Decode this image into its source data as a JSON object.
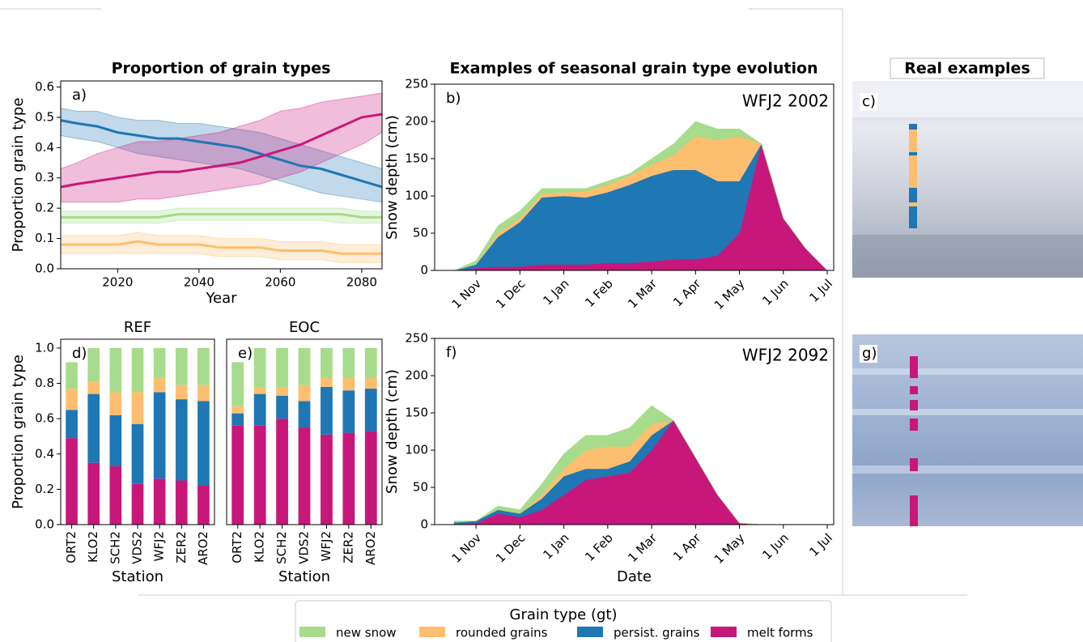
{
  "chart_data": [
    {
      "type": "line",
      "title": "Proportion of grain types",
      "annotation": "a)",
      "xlabel": "Year",
      "ylabel": "Proportion grain type",
      "x": [
        2006,
        2010,
        2015,
        2020,
        2025,
        2030,
        2035,
        2040,
        2045,
        2050,
        2055,
        2060,
        2065,
        2070,
        2075,
        2080,
        2085
      ],
      "xlim": [
        2006,
        2085
      ],
      "xticks": [
        2020,
        2040,
        2060,
        2080
      ],
      "ylim": [
        0,
        0.62
      ],
      "yticks": [
        {
          "value": 0,
          "label": "0.0"
        },
        0.1,
        0.2,
        0.3,
        0.4,
        0.5,
        0.6
      ],
      "series": [
        {
          "name": "persist. grains",
          "color": "#1f77b4",
          "values": [
            0.49,
            0.48,
            0.47,
            0.45,
            0.44,
            0.43,
            0.43,
            0.42,
            0.41,
            0.4,
            0.38,
            0.36,
            0.34,
            0.33,
            0.31,
            0.29,
            0.27
          ],
          "lower": [
            0.44,
            0.43,
            0.42,
            0.4,
            0.38,
            0.37,
            0.36,
            0.35,
            0.34,
            0.33,
            0.31,
            0.29,
            0.27,
            0.25,
            0.24,
            0.23,
            0.22
          ],
          "upper": [
            0.53,
            0.52,
            0.52,
            0.5,
            0.49,
            0.49,
            0.48,
            0.48,
            0.47,
            0.46,
            0.45,
            0.43,
            0.41,
            0.39,
            0.37,
            0.35,
            0.33
          ]
        },
        {
          "name": "melt forms",
          "color": "#c8177b",
          "values": [
            0.27,
            0.28,
            0.29,
            0.3,
            0.31,
            0.32,
            0.32,
            0.33,
            0.34,
            0.35,
            0.37,
            0.39,
            0.41,
            0.44,
            0.47,
            0.5,
            0.51
          ],
          "lower": [
            0.22,
            0.22,
            0.22,
            0.22,
            0.23,
            0.23,
            0.24,
            0.25,
            0.26,
            0.27,
            0.28,
            0.3,
            0.32,
            0.35,
            0.38,
            0.41,
            0.45
          ],
          "upper": [
            0.33,
            0.35,
            0.38,
            0.4,
            0.42,
            0.42,
            0.43,
            0.44,
            0.45,
            0.47,
            0.49,
            0.52,
            0.53,
            0.55,
            0.56,
            0.57,
            0.58
          ]
        },
        {
          "name": "new snow",
          "color": "#a6dc8b",
          "values": [
            0.17,
            0.17,
            0.17,
            0.17,
            0.17,
            0.17,
            0.18,
            0.18,
            0.18,
            0.18,
            0.18,
            0.18,
            0.18,
            0.18,
            0.18,
            0.17,
            0.17
          ],
          "lower": [
            0.15,
            0.15,
            0.15,
            0.15,
            0.15,
            0.15,
            0.16,
            0.16,
            0.16,
            0.16,
            0.16,
            0.16,
            0.16,
            0.16,
            0.15,
            0.15,
            0.15
          ],
          "upper": [
            0.19,
            0.19,
            0.19,
            0.19,
            0.19,
            0.19,
            0.2,
            0.2,
            0.2,
            0.2,
            0.2,
            0.2,
            0.2,
            0.2,
            0.2,
            0.19,
            0.19
          ]
        },
        {
          "name": "rounded grains",
          "color": "#fdbf6f",
          "values": [
            0.08,
            0.08,
            0.08,
            0.08,
            0.09,
            0.08,
            0.08,
            0.08,
            0.07,
            0.07,
            0.07,
            0.06,
            0.06,
            0.06,
            0.05,
            0.05,
            0.05
          ],
          "lower": [
            0.05,
            0.05,
            0.05,
            0.05,
            0.05,
            0.05,
            0.05,
            0.05,
            0.04,
            0.04,
            0.04,
            0.03,
            0.03,
            0.03,
            0.02,
            0.02,
            0.02
          ],
          "upper": [
            0.11,
            0.11,
            0.11,
            0.11,
            0.12,
            0.11,
            0.11,
            0.11,
            0.1,
            0.1,
            0.1,
            0.09,
            0.09,
            0.09,
            0.08,
            0.08,
            0.08
          ]
        }
      ]
    },
    {
      "type": "bar",
      "title": "REF",
      "annotation": "d)",
      "xlabel": "Station",
      "ylabel": "Proportion grain type",
      "categories": [
        "ORT2",
        "KLO2",
        "SCH2",
        "VDS2",
        "WFJ2",
        "ZER2",
        "ARO2"
      ],
      "ylim": [
        0,
        1.05
      ],
      "yticks": [
        {
          "value": 0,
          "label": "0.0"
        },
        0.2,
        0.4,
        0.6,
        0.8,
        {
          "value": 1,
          "label": "1.0"
        }
      ],
      "series": [
        {
          "name": "melt forms",
          "color": "#c8177b",
          "values": [
            0.49,
            0.35,
            0.33,
            0.23,
            0.26,
            0.25,
            0.22
          ]
        },
        {
          "name": "persist. grains",
          "color": "#1f77b4",
          "values": [
            0.16,
            0.39,
            0.29,
            0.34,
            0.49,
            0.46,
            0.48
          ]
        },
        {
          "name": "rounded grains",
          "color": "#fdbf6f",
          "values": [
            0.12,
            0.07,
            0.13,
            0.18,
            0.08,
            0.08,
            0.09
          ]
        },
        {
          "name": "new snow",
          "color": "#a6dc8b",
          "values": [
            0.15,
            0.19,
            0.25,
            0.25,
            0.17,
            0.21,
            0.21
          ]
        }
      ]
    },
    {
      "type": "bar",
      "title": "EOC",
      "annotation": "e)",
      "xlabel": "Station",
      "categories": [
        "ORT2",
        "KLO2",
        "SCH2",
        "VDS2",
        "WFJ2",
        "ZER2",
        "ARO2"
      ],
      "ylim": [
        0,
        1.05
      ],
      "series": [
        {
          "name": "melt forms",
          "color": "#c8177b",
          "values": [
            0.56,
            0.56,
            0.6,
            0.55,
            0.51,
            0.52,
            0.53
          ]
        },
        {
          "name": "persist. grains",
          "color": "#1f77b4",
          "values": [
            0.07,
            0.18,
            0.13,
            0.15,
            0.27,
            0.24,
            0.24
          ]
        },
        {
          "name": "rounded grains",
          "color": "#fdbf6f",
          "values": [
            0.04,
            0.04,
            0.05,
            0.09,
            0.05,
            0.07,
            0.06
          ]
        },
        {
          "name": "new snow",
          "color": "#a6dc8b",
          "values": [
            0.25,
            0.22,
            0.22,
            0.21,
            0.17,
            0.17,
            0.17
          ]
        }
      ]
    },
    {
      "type": "area",
      "title": "Examples of seasonal grain type evolution",
      "annotation": "b)",
      "note": "WFJ2 2002",
      "ylabel": "Snow depth (cm)",
      "categories": [
        null,
        "1 Nov",
        null,
        "1 Dec",
        null,
        "1 Jan",
        null,
        "1 Feb",
        null,
        "1 Mar",
        null,
        "1 Apr",
        null,
        "1 May",
        null,
        "1 Jun",
        null,
        "1 Jul"
      ],
      "ylim": [
        0,
        250
      ],
      "yticks": [
        0,
        50,
        100,
        150,
        200,
        250
      ],
      "series": [
        {
          "name": "melt forms",
          "color": "#c8177b",
          "values": [
            0,
            3,
            5,
            5,
            8,
            8,
            8,
            10,
            10,
            12,
            15,
            15,
            20,
            50,
            170,
            70,
            30,
            0
          ]
        },
        {
          "name": "persist. grains",
          "color": "#1f77b4",
          "values": [
            0,
            5,
            40,
            60,
            90,
            92,
            90,
            95,
            105,
            115,
            120,
            120,
            100,
            70,
            0,
            0,
            0,
            0
          ]
        },
        {
          "name": "rounded grains",
          "color": "#fdbf6f",
          "values": [
            0,
            0,
            5,
            5,
            5,
            5,
            8,
            10,
            12,
            15,
            20,
            45,
            55,
            60,
            0,
            0,
            0,
            0
          ]
        },
        {
          "name": "new snow",
          "color": "#a6dc8b",
          "values": [
            0,
            5,
            10,
            10,
            7,
            5,
            4,
            5,
            3,
            8,
            15,
            20,
            15,
            10,
            0,
            0,
            0,
            0
          ]
        }
      ]
    },
    {
      "type": "area",
      "annotation": "f)",
      "note": "WFJ2 2092",
      "xlabel": "Date",
      "ylabel": "Snow depth (cm)",
      "categories": [
        null,
        "1 Nov",
        null,
        "1 Dec",
        null,
        "1 Jan",
        null,
        "1 Feb",
        null,
        "1 Mar",
        null,
        "1 Apr",
        null,
        "1 May",
        null,
        "1 Jun",
        null,
        "1 Jul"
      ],
      "ylim": [
        0,
        250
      ],
      "yticks": [
        0,
        50,
        100,
        150,
        200,
        250
      ],
      "series": [
        {
          "name": "melt forms",
          "color": "#c8177b",
          "values": [
            0,
            2,
            15,
            10,
            20,
            40,
            60,
            65,
            70,
            100,
            140,
            90,
            40,
            2,
            0,
            0,
            0,
            0
          ]
        },
        {
          "name": "persist. grains",
          "color": "#1f77b4",
          "values": [
            3,
            3,
            5,
            5,
            15,
            25,
            15,
            10,
            15,
            20,
            0,
            0,
            0,
            0,
            0,
            0,
            0,
            0
          ]
        },
        {
          "name": "rounded grains",
          "color": "#fdbf6f",
          "values": [
            0,
            0,
            0,
            0,
            5,
            10,
            25,
            30,
            20,
            15,
            0,
            0,
            0,
            0,
            0,
            0,
            0,
            0
          ]
        },
        {
          "name": "new snow",
          "color": "#a6dc8b",
          "values": [
            2,
            0,
            5,
            5,
            15,
            20,
            20,
            15,
            25,
            25,
            0,
            0,
            0,
            0,
            0,
            0,
            0,
            0
          ]
        }
      ]
    }
  ],
  "photos": {
    "title": "Real examples",
    "panels": [
      "c)",
      "g)"
    ]
  },
  "legend": {
    "title": "Grain type (gt)"
  }
}
